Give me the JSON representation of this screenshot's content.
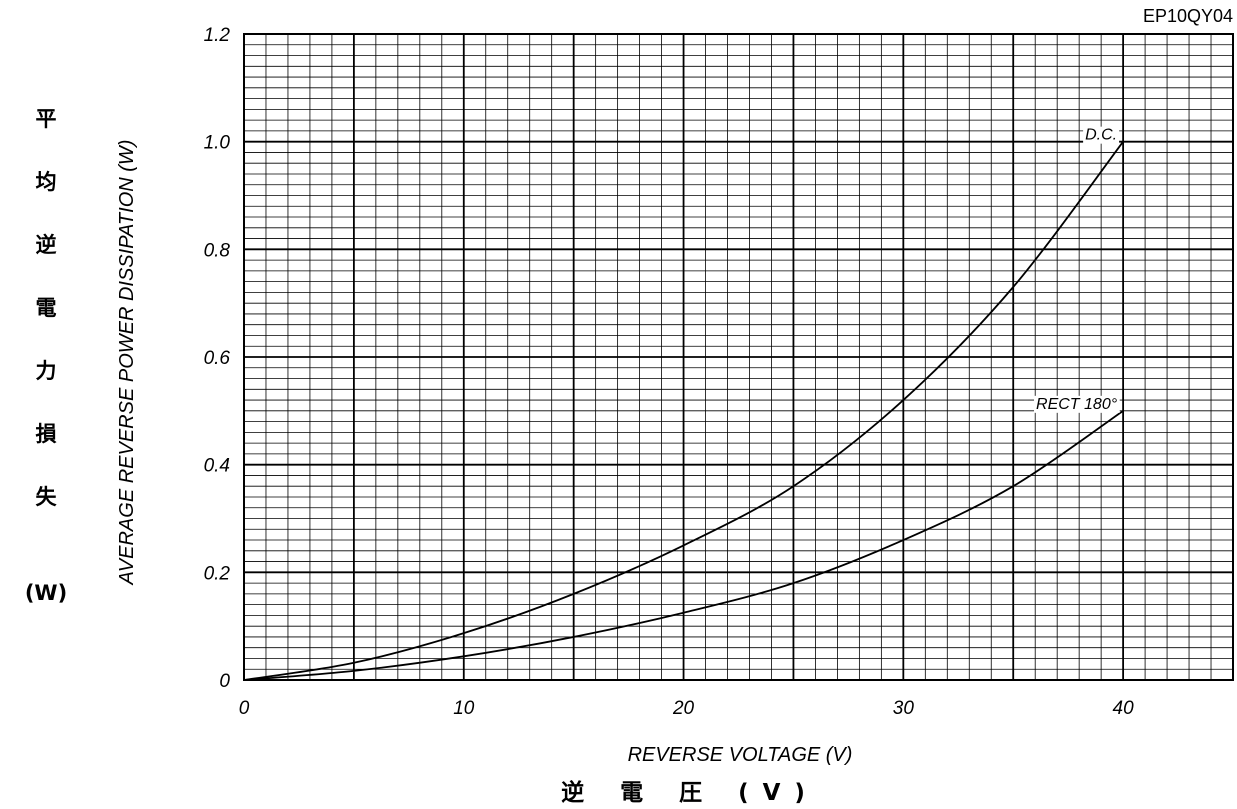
{
  "chart_data": {
    "type": "line",
    "code": "EP10QY04",
    "xlabel": "REVERSE VOLTAGE (V)",
    "xlabel_jp": "逆 電 圧 (V)",
    "ylabel": "AVERAGE REVERSE POWER DISSIPATION (W)",
    "ylabel_jp": [
      "平",
      "均",
      "逆",
      "電",
      "力",
      "損",
      "失"
    ],
    "ylabel_jp_unit": "(W)",
    "xlim": [
      0,
      45
    ],
    "ylim": [
      0,
      1.2
    ],
    "x_ticks": [
      0,
      10,
      20,
      30,
      40
    ],
    "x_tick_labels": [
      "0",
      "10",
      "20",
      "30",
      "40"
    ],
    "y_ticks": [
      0,
      0.2,
      0.4,
      0.6,
      0.8,
      1.0,
      1.2
    ],
    "y_tick_labels": [
      "0",
      "0.2",
      "0.4",
      "0.6",
      "0.8",
      "1.0",
      "1.2"
    ],
    "grid": true,
    "series": [
      {
        "name": "D.C.",
        "x": [
          0,
          5,
          10,
          15,
          20,
          25,
          30,
          35,
          40
        ],
        "y": [
          0,
          0.032,
          0.087,
          0.16,
          0.25,
          0.36,
          0.52,
          0.73,
          1.0
        ]
      },
      {
        "name": "RECT 180°",
        "x": [
          0,
          5,
          10,
          15,
          20,
          25,
          30,
          35,
          40
        ],
        "y": [
          0,
          0.017,
          0.044,
          0.08,
          0.125,
          0.18,
          0.26,
          0.36,
          0.5
        ]
      }
    ]
  }
}
